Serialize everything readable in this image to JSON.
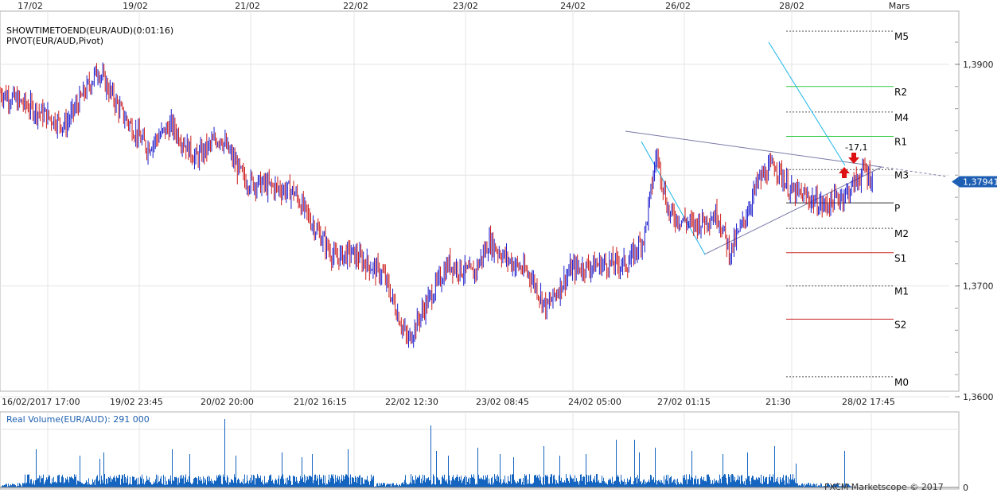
{
  "chart_data": [
    {
      "type": "candlestick",
      "indicators": [
        "SHOWTIMETOEND(EUR/AUD)(0:01:16)",
        "PIVOT(EUR/AUD,Pivot)"
      ],
      "top_date_labels": [
        "17/02",
        "19/02",
        "21/02",
        "22/02",
        "23/02",
        "24/02",
        "26/02",
        "28/02",
        "Mars"
      ],
      "bottom_time_labels": [
        "16/02/2017 17:00",
        "19/02 23:45",
        "20/02 20:00",
        "21/02 16:15",
        "22/02 12:30",
        "23/02 08:45",
        "24/02 05:00",
        "27/02 01:15",
        "21:30",
        "28/02 17:45"
      ],
      "y_tick_labels": [
        "1,3900",
        "1,3700",
        "1,3600"
      ],
      "ylim": [
        1.3605,
        1.3948
      ],
      "current_price": 1.37941,
      "current_price_label": "1,37941",
      "countdown_annotation": "-17,1",
      "price_path": [
        {
          "t": 0,
          "p": 1.3875
        },
        {
          "t": 0.04,
          "p": 1.386
        },
        {
          "t": 0.08,
          "p": 1.3845
        },
        {
          "t": 0.12,
          "p": 1.3895
        },
        {
          "t": 0.15,
          "p": 1.3855
        },
        {
          "t": 0.18,
          "p": 1.3825
        },
        {
          "t": 0.21,
          "p": 1.3845
        },
        {
          "t": 0.24,
          "p": 1.3815
        },
        {
          "t": 0.27,
          "p": 1.3835
        },
        {
          "t": 0.3,
          "p": 1.3795
        },
        {
          "t": 0.33,
          "p": 1.379
        },
        {
          "t": 0.36,
          "p": 1.3785
        },
        {
          "t": 0.38,
          "p": 1.376
        },
        {
          "t": 0.41,
          "p": 1.3725
        },
        {
          "t": 0.43,
          "p": 1.373
        },
        {
          "t": 0.47,
          "p": 1.371
        },
        {
          "t": 0.5,
          "p": 1.365
        },
        {
          "t": 0.52,
          "p": 1.368
        },
        {
          "t": 0.55,
          "p": 1.372
        },
        {
          "t": 0.58,
          "p": 1.371
        },
        {
          "t": 0.6,
          "p": 1.374
        },
        {
          "t": 0.62,
          "p": 1.3725
        },
        {
          "t": 0.65,
          "p": 1.371
        },
        {
          "t": 0.67,
          "p": 1.368
        },
        {
          "t": 0.7,
          "p": 1.3715
        },
        {
          "t": 0.74,
          "p": 1.372
        },
        {
          "t": 0.77,
          "p": 1.372
        },
        {
          "t": 0.79,
          "p": 1.3745
        },
        {
          "t": 0.805,
          "p": 1.382
        },
        {
          "t": 0.82,
          "p": 1.3765
        },
        {
          "t": 0.85,
          "p": 1.3755
        },
        {
          "t": 0.88,
          "p": 1.3765
        },
        {
          "t": 0.895,
          "p": 1.373
        },
        {
          "t": 0.91,
          "p": 1.3755
        },
        {
          "t": 0.93,
          "p": 1.3795
        },
        {
          "t": 0.95,
          "p": 1.381
        },
        {
          "t": 0.97,
          "p": 1.3785
        },
        {
          "t": 0.99,
          "p": 1.378
        },
        {
          "t": 1.01,
          "p": 1.3772
        },
        {
          "t": 1.04,
          "p": 1.3785
        },
        {
          "t": 1.06,
          "p": 1.3805
        },
        {
          "t": 1.07,
          "p": 1.3795
        }
      ],
      "pivot_levels": [
        {
          "name": "M5",
          "value": 1.393,
          "style": "dashed",
          "color": "#555555"
        },
        {
          "name": "R2",
          "value": 1.388,
          "style": "solid",
          "color": "#2ecc40"
        },
        {
          "name": "M4",
          "value": 1.3857,
          "style": "dashed",
          "color": "#555555"
        },
        {
          "name": "R1",
          "value": 1.3835,
          "style": "solid",
          "color": "#2ecc40"
        },
        {
          "name": "M3",
          "value": 1.3805,
          "style": "dashed",
          "color": "#555555"
        },
        {
          "name": "P",
          "value": 1.3775,
          "style": "solid",
          "color": "#333333"
        },
        {
          "name": "M2",
          "value": 1.3752,
          "style": "dashed",
          "color": "#555555"
        },
        {
          "name": "S1",
          "value": 1.373,
          "style": "solid",
          "color": "#cc2222"
        },
        {
          "name": "M1",
          "value": 1.37,
          "style": "dashed",
          "color": "#555555"
        },
        {
          "name": "S2",
          "value": 1.367,
          "style": "solid",
          "color": "#cc2222"
        },
        {
          "name": "M0",
          "value": 1.3618,
          "style": "dashed",
          "color": "#555555"
        }
      ],
      "colors": {
        "up": "#1a1acc",
        "down": "#cc1a1a",
        "trendline": "#7a7aa8",
        "channel": "#19b5e8",
        "grid": "#e4e4e4"
      }
    },
    {
      "type": "bar",
      "title": "Real Volume(EUR/AUD): 291 000",
      "y_tick_labels": [
        "0"
      ],
      "color": "#1565c0",
      "watermark": "FXCM Marketscope © 2017"
    }
  ]
}
